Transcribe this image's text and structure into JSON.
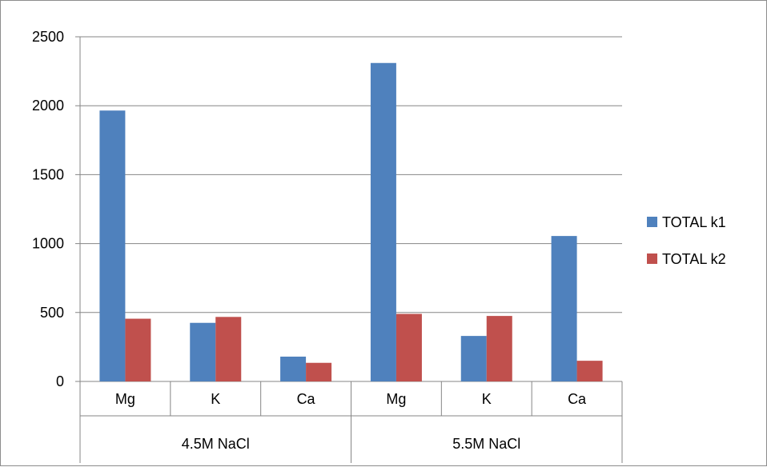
{
  "chart_data": {
    "type": "bar",
    "groups": [
      {
        "label": "4.5M NaCl",
        "categories": [
          "Mg",
          "K",
          "Ca"
        ]
      },
      {
        "label": "5.5M NaCl",
        "categories": [
          "Mg",
          "K",
          "Ca"
        ]
      }
    ],
    "categories": [
      "Mg",
      "K",
      "Ca",
      "Mg",
      "K",
      "Ca"
    ],
    "series": [
      {
        "name": "TOTAL k1",
        "color": "#4F81BD",
        "values": [
          1965,
          425,
          180,
          2310,
          330,
          1055
        ]
      },
      {
        "name": "TOTAL k2",
        "color": "#C0504D",
        "values": [
          455,
          468,
          135,
          490,
          475,
          150
        ]
      }
    ],
    "yticks": [
      "0",
      "500",
      "1000",
      "1500",
      "2000",
      "2500"
    ],
    "ylim": [
      0,
      2500
    ],
    "grid": true,
    "legend_position": "right"
  }
}
